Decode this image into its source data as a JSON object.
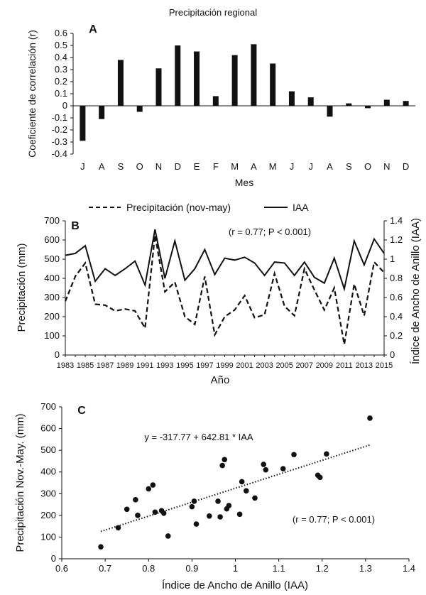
{
  "chart_data": [
    {
      "panel": "A",
      "type": "bar",
      "title": "Precipitación regional",
      "xlabel": "Mes",
      "ylabel": "Coeficiente de correlación (r)",
      "ylim": [
        -0.4,
        0.6
      ],
      "yticks": [
        "0.6",
        "0.5",
        "0.4",
        "0.3",
        "0.2",
        "0.1",
        "0",
        "-0.1",
        "-0.2",
        "-0.3",
        "-0.4"
      ],
      "categories": [
        "J",
        "A",
        "S",
        "O",
        "N",
        "D",
        "E",
        "F",
        "M",
        "A",
        "M",
        "J",
        "J",
        "A",
        "S",
        "O",
        "N",
        "D"
      ],
      "values": [
        -0.29,
        -0.11,
        0.38,
        -0.05,
        0.31,
        0.5,
        0.45,
        0.08,
        0.42,
        0.51,
        0.35,
        0.12,
        0.07,
        -0.09,
        0.02,
        -0.02,
        0.05,
        0.04
      ],
      "grid": false
    },
    {
      "panel": "B",
      "type": "line",
      "xlabel": "Año",
      "ylabel": "Precipitación (mm)",
      "y2label": "Índice de Ancho de Anillo (IAA)",
      "annotation": "(r = 0.77; P < 0.001)",
      "xlim": [
        1983,
        2015
      ],
      "ylim": [
        0,
        700
      ],
      "y2lim": [
        0,
        1.4
      ],
      "xticks": [
        "1983",
        "1985",
        "1987",
        "1989",
        "1991",
        "1993",
        "1995",
        "1997",
        "1999",
        "2001",
        "2003",
        "2005",
        "2007",
        "2009",
        "2011",
        "2013",
        "2015"
      ],
      "yticks": [
        "0",
        "100",
        "200",
        "300",
        "400",
        "500",
        "600",
        "700"
      ],
      "y2ticks": [
        "0",
        "0.2",
        "0.4",
        "0.6",
        "0.8",
        "1",
        "1.2",
        "1.4"
      ],
      "legend_position": "top",
      "x": [
        1983,
        1984,
        1985,
        1986,
        1987,
        1988,
        1989,
        1990,
        1991,
        1992,
        1993,
        1994,
        1995,
        1996,
        1997,
        1998,
        1999,
        2000,
        2001,
        2002,
        2003,
        2004,
        2005,
        2006,
        2007,
        2008,
        2009,
        2010,
        2011,
        2012,
        2013,
        2014,
        2015
      ],
      "series": [
        {
          "name": "Precipitación (nov-may)",
          "axis": "left",
          "style": "dashed",
          "values": [
            280,
            410,
            480,
            265,
            260,
            230,
            240,
            230,
            140,
            625,
            330,
            380,
            200,
            160,
            410,
            105,
            200,
            235,
            310,
            195,
            210,
            425,
            255,
            205,
            450,
            340,
            235,
            350,
            55,
            370,
            205,
            485,
            430
          ]
        },
        {
          "name": "IAA",
          "axis": "right",
          "style": "solid",
          "values": [
            1.04,
            1.06,
            1.14,
            0.77,
            0.9,
            0.83,
            0.9,
            0.98,
            0.73,
            1.31,
            0.8,
            1.19,
            0.78,
            0.9,
            1.1,
            0.84,
            1.01,
            0.99,
            1.02,
            0.96,
            0.83,
            0.97,
            0.96,
            0.83,
            0.97,
            0.81,
            0.75,
            1.01,
            0.69,
            1.19,
            0.94,
            1.21,
            1.06
          ]
        }
      ]
    },
    {
      "panel": "C",
      "type": "scatter",
      "xlabel": "Índice de Ancho de Anillo (IAA)",
      "ylabel": "Precipitación Nov.-May. (mm)",
      "xlim": [
        0.6,
        1.4
      ],
      "ylim": [
        0,
        700
      ],
      "xticks": [
        "0.6",
        "0.7",
        "0.8",
        "0.9",
        "1",
        "1.1",
        "1.2",
        "1.3",
        "1.4"
      ],
      "yticks": [
        "0",
        "100",
        "200",
        "300",
        "400",
        "500",
        "600",
        "700"
      ],
      "equation": "y = -317.77 + 642.81 * IAA",
      "annotation": "(r = 0.77; P < 0.001)",
      "trendline": {
        "intercept": -317.77,
        "slope": 642.81,
        "x_range": [
          0.69,
          1.31
        ]
      },
      "points": [
        [
          0.69,
          55
        ],
        [
          0.73,
          143
        ],
        [
          0.75,
          228
        ],
        [
          0.77,
          272
        ],
        [
          0.775,
          200
        ],
        [
          0.8,
          322
        ],
        [
          0.81,
          340
        ],
        [
          0.815,
          215
        ],
        [
          0.83,
          222
        ],
        [
          0.835,
          210
        ],
        [
          0.845,
          105
        ],
        [
          0.9,
          240
        ],
        [
          0.905,
          265
        ],
        [
          0.91,
          160
        ],
        [
          0.94,
          197
        ],
        [
          0.96,
          265
        ],
        [
          0.965,
          193
        ],
        [
          0.97,
          430
        ],
        [
          0.975,
          457
        ],
        [
          0.98,
          230
        ],
        [
          0.985,
          245
        ],
        [
          1.01,
          205
        ],
        [
          1.015,
          355
        ],
        [
          1.025,
          313
        ],
        [
          1.045,
          280
        ],
        [
          1.065,
          435
        ],
        [
          1.07,
          410
        ],
        [
          1.11,
          415
        ],
        [
          1.135,
          480
        ],
        [
          1.19,
          385
        ],
        [
          1.195,
          375
        ],
        [
          1.21,
          483
        ],
        [
          1.31,
          648
        ]
      ]
    }
  ]
}
